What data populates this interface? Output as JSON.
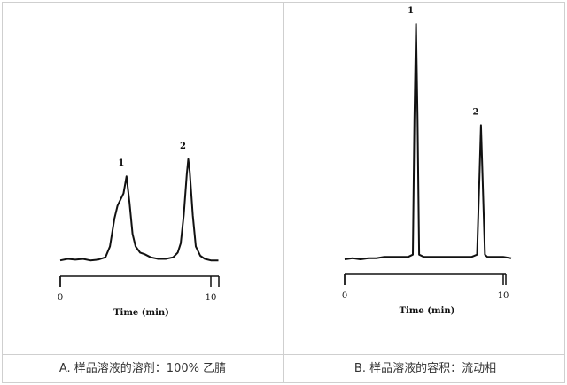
{
  "chart_data": [
    {
      "type": "line",
      "panel": "A",
      "caption": "A. 样品溶液的溶剂：100% 乙腈",
      "xlabel": "Time (min)",
      "xticks": [
        0,
        10
      ],
      "xlim": [
        0,
        10.5
      ],
      "ylim": [
        0,
        1
      ],
      "peaks": [
        {
          "label": "1",
          "x": 4.4,
          "height": 0.55
        },
        {
          "label": "2",
          "x": 8.5,
          "height": 0.66
        }
      ],
      "x": [
        0.0,
        0.5,
        1.0,
        1.5,
        2.0,
        2.5,
        3.0,
        3.3,
        3.6,
        3.8,
        4.0,
        4.2,
        4.4,
        4.6,
        4.8,
        5.0,
        5.3,
        5.6,
        6.0,
        6.5,
        7.0,
        7.5,
        7.8,
        8.0,
        8.2,
        8.4,
        8.5,
        8.6,
        8.8,
        9.0,
        9.3,
        9.6,
        10.0,
        10.5
      ],
      "y": [
        0.01,
        0.02,
        0.015,
        0.02,
        0.01,
        0.015,
        0.03,
        0.1,
        0.28,
        0.36,
        0.4,
        0.44,
        0.55,
        0.38,
        0.18,
        0.1,
        0.06,
        0.05,
        0.03,
        0.02,
        0.02,
        0.03,
        0.06,
        0.12,
        0.3,
        0.56,
        0.66,
        0.58,
        0.3,
        0.1,
        0.04,
        0.02,
        0.01,
        0.01
      ]
    },
    {
      "type": "line",
      "panel": "B",
      "caption": "B. 样品溶液的容积：流动相",
      "xlabel": "Time (min)",
      "xticks": [
        0,
        10
      ],
      "xlim": [
        0,
        10.5
      ],
      "ylim": [
        0,
        1
      ],
      "peaks": [
        {
          "label": "1",
          "x": 4.5,
          "height": 1.0
        },
        {
          "label": "2",
          "x": 8.6,
          "height": 0.57
        }
      ],
      "x": [
        0.0,
        0.5,
        1.0,
        1.5,
        2.0,
        2.5,
        3.0,
        3.5,
        4.0,
        4.3,
        4.4,
        4.5,
        4.6,
        4.7,
        5.0,
        5.5,
        6.0,
        6.5,
        7.0,
        7.5,
        8.0,
        8.35,
        8.5,
        8.6,
        8.7,
        8.85,
        9.0,
        9.5,
        10.0,
        10.5
      ],
      "y": [
        0.0,
        0.005,
        0.0,
        0.005,
        0.005,
        0.01,
        0.01,
        0.01,
        0.01,
        0.02,
        0.6,
        1.0,
        0.6,
        0.02,
        0.01,
        0.01,
        0.01,
        0.01,
        0.01,
        0.01,
        0.01,
        0.02,
        0.35,
        0.57,
        0.35,
        0.02,
        0.01,
        0.01,
        0.01,
        0.005
      ]
    }
  ]
}
